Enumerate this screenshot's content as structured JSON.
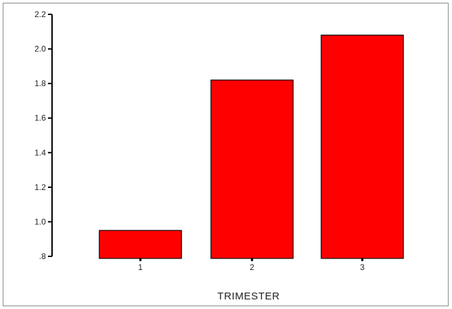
{
  "chart_data": {
    "type": "bar",
    "title": "",
    "xlabel": "TRIMESTER",
    "ylabel": "",
    "categories": [
      "1",
      "2",
      "3"
    ],
    "values": [
      0.95,
      1.82,
      2.08
    ],
    "ylim": [
      0.8,
      2.2
    ],
    "yticks": [
      ".8",
      "1.0",
      "1.2",
      "1.4",
      "1.6",
      "1.8",
      "2.0",
      "2.2"
    ],
    "ytick_values": [
      0.8,
      1.0,
      1.2,
      1.4,
      1.6,
      1.8,
      2.0,
      2.2
    ],
    "grid": false,
    "legend": "none",
    "bar_color": "#ff0000",
    "bar_outline_color": "#000000"
  }
}
